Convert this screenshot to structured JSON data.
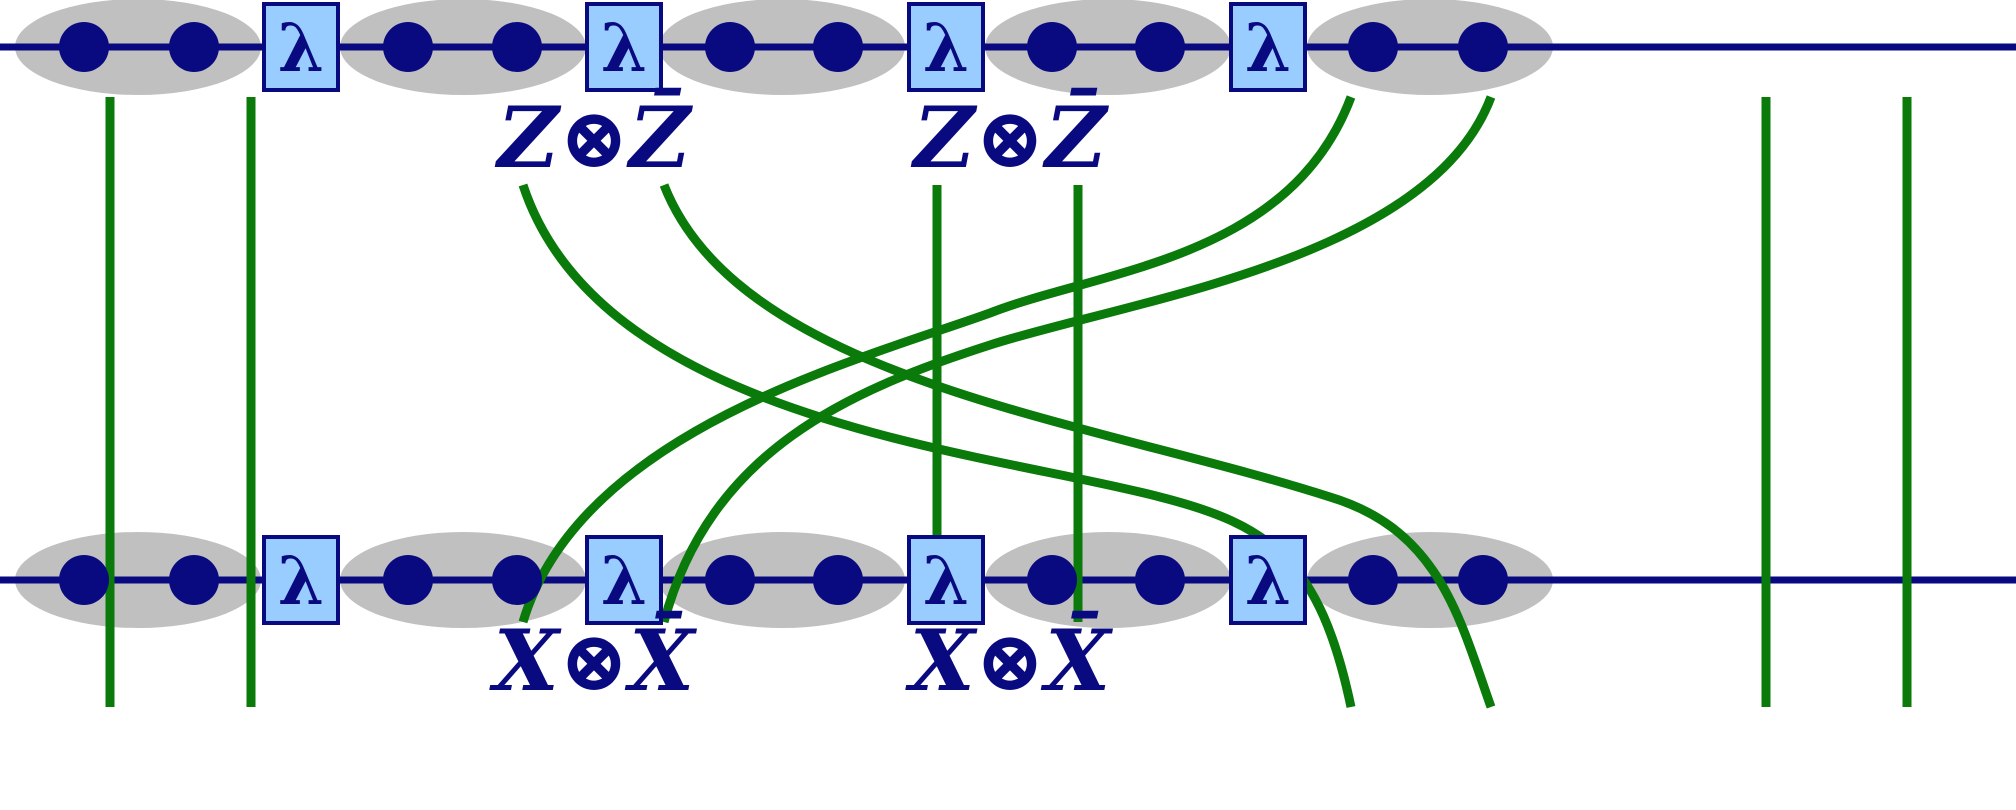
{
  "colors": {
    "wire": "#0a0a80",
    "node": "#0a0a80",
    "ellipse": "#c0c0c0",
    "lambda_fill": "#99ccff",
    "lambda_stroke": "#0a0a80",
    "link": "#0a7a0a",
    "label": "#0a0a80",
    "background": "#ffffff"
  },
  "lambda_symbol": "λ",
  "top_labels": [
    {
      "left": "Z",
      "op": "⊗",
      "right": "Z̄"
    },
    {
      "left": "Z",
      "op": "⊗",
      "right": "Z̄"
    }
  ],
  "bottom_labels": [
    {
      "left": "X",
      "op": "⊗",
      "right": "X̄"
    },
    {
      "left": "X",
      "op": "⊗",
      "right": "X̄"
    }
  ],
  "rows": [
    "top",
    "bottom"
  ],
  "sites_per_row": 5,
  "nodes_per_site": 2,
  "lambda_boxes_per_row": 4,
  "icons": [
    "lambda-box",
    "tensor-node",
    "site-ellipse"
  ]
}
